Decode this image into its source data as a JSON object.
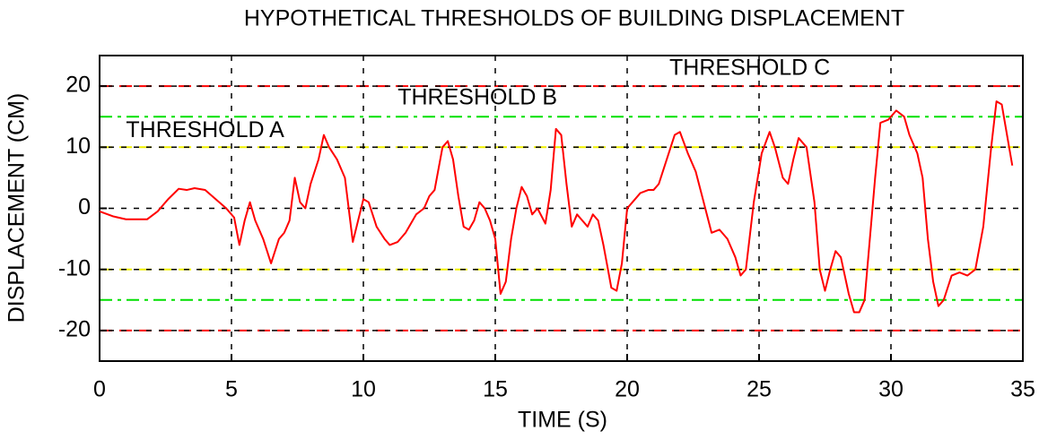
{
  "chart_data": {
    "type": "line",
    "title": "HYPOTHETICAL THRESHOLDS OF BUILDING DISPLACEMENT",
    "x_label": "TIME (S)",
    "y_label": "DISPLACEMENT (CM)",
    "xlim": [
      0,
      35
    ],
    "ylim": [
      -25,
      25
    ],
    "xticks": [
      0,
      5,
      10,
      15,
      20,
      25,
      30,
      35
    ],
    "yticks": [
      -20,
      -10,
      0,
      10,
      20
    ],
    "grid": true,
    "thresholds": [
      {
        "value": 20,
        "color": "#ff0000"
      },
      {
        "value": -20,
        "color": "#ff0000"
      },
      {
        "value": 15,
        "color": "#00e000"
      },
      {
        "value": -15,
        "color": "#00e000"
      },
      {
        "value": 10,
        "color": "#f0f000"
      },
      {
        "value": -10,
        "color": "#f0f000"
      }
    ],
    "annotations": [
      {
        "text": "THRESHOLD A",
        "x": 1,
        "y": 12.6
      },
      {
        "text": "THRESHOLD B",
        "x": 11.3,
        "y": 18
      },
      {
        "text": "THRESHOLD C",
        "x": 21.6,
        "y": 22.8
      }
    ],
    "series": [
      {
        "name": "Displacement",
        "color": "#ff0000",
        "x": [
          0,
          0.5,
          1,
          1.5,
          1.8,
          2.2,
          2.6,
          3,
          3.3,
          3.6,
          4,
          4.4,
          4.8,
          5.1,
          5.3,
          5.5,
          5.7,
          5.9,
          6.2,
          6.5,
          6.8,
          7,
          7.2,
          7.4,
          7.6,
          7.8,
          8,
          8.3,
          8.5,
          8.7,
          9,
          9.3,
          9.5,
          9.6,
          9.8,
          10,
          10.2,
          10.5,
          10.8,
          11,
          11.3,
          11.6,
          12,
          12.3,
          12.5,
          12.7,
          13,
          13.2,
          13.4,
          13.6,
          13.8,
          14,
          14.2,
          14.4,
          14.6,
          14.8,
          15,
          15.2,
          15.4,
          15.6,
          15.8,
          16,
          16.2,
          16.4,
          16.6,
          16.9,
          17.1,
          17.3,
          17.5,
          17.7,
          17.9,
          18.1,
          18.3,
          18.5,
          18.7,
          18.9,
          19.1,
          19.4,
          19.6,
          19.8,
          20,
          20.2,
          20.5,
          20.8,
          21,
          21.2,
          21.5,
          21.8,
          22,
          22.3,
          22.6,
          22.9,
          23.2,
          23.5,
          23.8,
          24.1,
          24.3,
          24.5,
          24.8,
          25.1,
          25.4,
          25.6,
          25.9,
          26.1,
          26.3,
          26.5,
          26.8,
          27.1,
          27.3,
          27.5,
          27.7,
          27.9,
          28.1,
          28.4,
          28.6,
          28.8,
          29,
          29.2,
          29.4,
          29.6,
          29.9,
          30.2,
          30.5,
          30.7,
          31,
          31.2,
          31.4,
          31.6,
          31.8,
          32,
          32.3,
          32.6,
          32.9,
          33.2,
          33.5,
          33.8,
          34,
          34.2,
          34.4,
          34.6
        ],
        "values": [
          -0.5,
          -1.3,
          -1.8,
          -1.8,
          -1.8,
          -0.5,
          1.5,
          3.2,
          3,
          3.3,
          3,
          1.5,
          0,
          -1.5,
          -6,
          -2,
          1,
          -2,
          -5,
          -9,
          -5,
          -4,
          -2,
          5,
          1,
          0,
          4,
          8,
          12,
          10,
          8,
          5,
          -2,
          -5.5,
          -2,
          1.5,
          1,
          -3,
          -5,
          -6,
          -5.5,
          -4,
          -1,
          0,
          2,
          3,
          10,
          11,
          8,
          2,
          -3,
          -3.5,
          -2,
          1,
          0,
          -2,
          -5,
          -14,
          -12,
          -5,
          0,
          3.5,
          2,
          -1,
          0,
          -2.5,
          3,
          13,
          12,
          4,
          -3,
          -1,
          -2,
          -3,
          -1,
          -2,
          -6,
          -13,
          -13.5,
          -9,
          0,
          1,
          2.5,
          3,
          3,
          4,
          8,
          12,
          12.5,
          9,
          6,
          1,
          -4,
          -3.5,
          -5,
          -8,
          -11,
          -10,
          1,
          9,
          12.5,
          10,
          5,
          4,
          8,
          11.5,
          10,
          1,
          -10,
          -13.5,
          -10,
          -7,
          -8,
          -14,
          -17,
          -17,
          -15,
          -5,
          5,
          14,
          14.5,
          16,
          15,
          12,
          9,
          5,
          -5,
          -12,
          -16,
          -15,
          -11,
          -10.5,
          -11,
          -10,
          -3,
          10,
          17.5,
          17,
          12,
          7
        ]
      }
    ]
  }
}
